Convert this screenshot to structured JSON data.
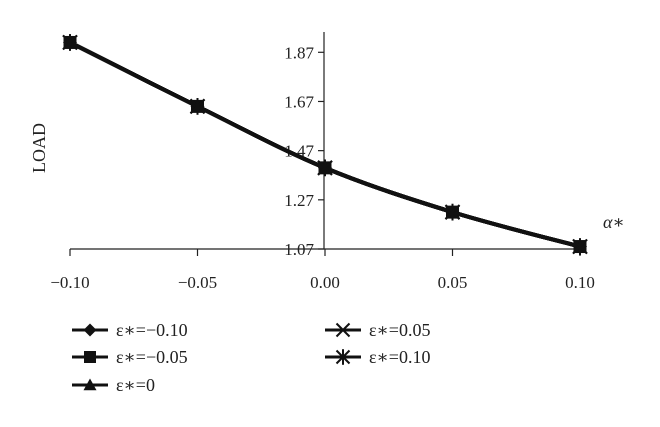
{
  "chart_data": {
    "type": "line",
    "x": [
      -0.1,
      -0.05,
      0.0,
      0.05,
      0.1
    ],
    "x_tick_labels": [
      "−0.10",
      "−0.05",
      "0.00",
      "0.05",
      "0.10"
    ],
    "y_tick_values": [
      1.07,
      1.27,
      1.47,
      1.67,
      1.87
    ],
    "y_tick_labels": [
      "1.07",
      "1.27",
      "1.47",
      "1.67",
      "1.87"
    ],
    "xlim": [
      -0.1,
      0.1
    ],
    "ylim": [
      1.07,
      1.92
    ],
    "xlabel": "α∗",
    "ylabel": "LOAD",
    "grid": false,
    "legend_position": "bottom",
    "line_color": "#111111",
    "series": [
      {
        "name": "ε∗=−0.10",
        "marker": "diamond",
        "values": [
          1.91,
          1.65,
          1.4,
          1.22,
          1.08
        ]
      },
      {
        "name": "ε∗=−0.05",
        "marker": "square",
        "values": [
          1.91,
          1.65,
          1.4,
          1.22,
          1.08
        ]
      },
      {
        "name": "ε∗=0",
        "marker": "triangle",
        "values": [
          1.91,
          1.65,
          1.4,
          1.22,
          1.08
        ]
      },
      {
        "name": "ε∗=0.05",
        "marker": "x",
        "values": [
          1.91,
          1.65,
          1.4,
          1.22,
          1.08
        ]
      },
      {
        "name": "ε∗=0.10",
        "marker": "star",
        "values": [
          1.91,
          1.65,
          1.4,
          1.22,
          1.08
        ]
      }
    ]
  }
}
